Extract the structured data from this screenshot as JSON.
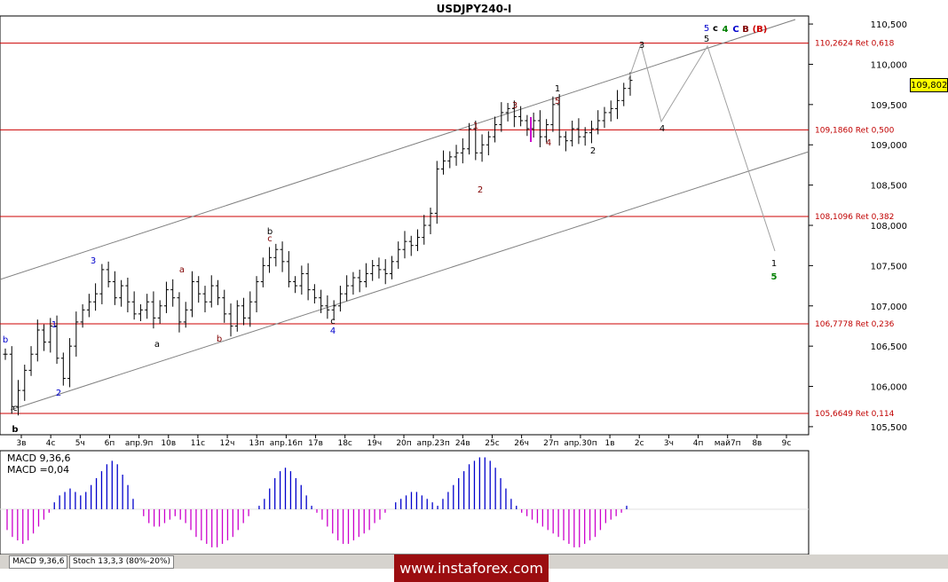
{
  "title": "USDJPY240-I",
  "current_price": "109,802",
  "chart_data": {
    "type": "candlestick",
    "title": "USDJPY240-I",
    "ylim": [
      105.4,
      110.6
    ],
    "y_ticks": [
      "105,500",
      "106,000",
      "106,500",
      "107,000",
      "107,500",
      "108,000",
      "108,500",
      "109,000",
      "109,500",
      "110,000",
      "110,500"
    ],
    "x_ticks": [
      "3в",
      "4с",
      "5ч",
      "6п",
      "апр.9п",
      "10в",
      "11с",
      "12ч",
      "13п",
      "апр.16п",
      "17в",
      "18с",
      "19ч",
      "20п",
      "апр.23п",
      "24в",
      "25с",
      "26ч",
      "27п",
      "апр.30п",
      "1в",
      "2с",
      "3ч",
      "4п",
      "май7п",
      "8в",
      "9с"
    ],
    "fib_levels": [
      {
        "label": "110,2624 Ret 0,618",
        "value": 110.2624
      },
      {
        "label": "109,1860 Ret 0,500",
        "value": 109.186
      },
      {
        "label": "108,1096 Ret 0,382",
        "value": 108.1096
      },
      {
        "label": "106,7778 Ret 0,236",
        "value": 106.7778
      },
      {
        "label": "105,6649 Ret 0,114",
        "value": 105.6649
      }
    ],
    "closes": [
      106.4,
      105.75,
      105.95,
      106.2,
      106.4,
      106.7,
      106.55,
      106.75,
      106.35,
      106.1,
      106.5,
      106.8,
      106.95,
      107.05,
      107.15,
      107.45,
      107.3,
      107.1,
      107.25,
      107.05,
      106.9,
      106.95,
      107.05,
      106.85,
      107.0,
      107.2,
      107.1,
      106.8,
      106.95,
      107.3,
      107.15,
      107.05,
      107.25,
      107.1,
      106.9,
      106.75,
      107.0,
      106.85,
      107.05,
      107.3,
      107.5,
      107.6,
      107.7,
      107.55,
      107.3,
      107.25,
      107.4,
      107.2,
      107.1,
      107.0,
      106.95,
      107.0,
      107.15,
      107.25,
      107.35,
      107.3,
      107.4,
      107.5,
      107.45,
      107.4,
      107.55,
      107.7,
      107.8,
      107.75,
      107.85,
      108.0,
      108.15,
      108.7,
      108.8,
      108.85,
      108.9,
      108.95,
      109.2,
      108.9,
      109.0,
      109.1,
      109.25,
      109.4,
      109.45,
      109.35,
      109.3,
      109.2,
      109.3,
      109.1,
      109.25,
      109.5,
      109.1,
      109.05,
      109.2,
      109.1,
      109.15,
      109.2,
      109.3,
      109.4,
      109.45,
      109.55,
      109.7,
      109.8
    ]
  },
  "wave_labels": [
    {
      "text": "b",
      "color": "#0000cc"
    },
    {
      "text": "c",
      "color": "#000000"
    },
    {
      "text": "b",
      "color": "#000000"
    },
    {
      "text": "1",
      "color": "#0000cc"
    },
    {
      "text": "2",
      "color": "#0000cc"
    },
    {
      "text": "3",
      "color": "#0000cc"
    },
    {
      "text": "a",
      "color": "#000000"
    },
    {
      "text": "a",
      "color": "#800000"
    },
    {
      "text": "b",
      "color": "#800000"
    },
    {
      "text": "b",
      "color": "#000000"
    },
    {
      "text": "c",
      "color": "#800000"
    },
    {
      "text": "c",
      "color": "#000000"
    },
    {
      "text": "4",
      "color": "#0000cc"
    },
    {
      "text": "1",
      "color": "#800000"
    },
    {
      "text": "2",
      "color": "#800000"
    },
    {
      "text": "3",
      "color": "#800000"
    },
    {
      "text": "4",
      "color": "#800000"
    },
    {
      "text": "5",
      "color": "#800000"
    },
    {
      "text": "1",
      "color": "#000000"
    },
    {
      "text": "2",
      "color": "#000000"
    },
    {
      "text": "3",
      "color": "#000000"
    },
    {
      "text": "4",
      "color": "#000000"
    },
    {
      "text": "5",
      "color": "#000000"
    },
    {
      "text": "5",
      "color": "#0000cc"
    },
    {
      "text": "c",
      "color": "#000000"
    },
    {
      "text": "4",
      "color": "#008000"
    },
    {
      "text": "C",
      "color": "#0000cc"
    },
    {
      "text": "B",
      "color": "#800000"
    },
    {
      "text": "(B)",
      "color": "#cc0000"
    },
    {
      "text": "1",
      "color": "#000000"
    },
    {
      "text": "5",
      "color": "#008000"
    }
  ],
  "macd": {
    "label_line1": "MACD 9,36,6",
    "label_line2": "MACD =0,04",
    "values": [
      -6,
      -8,
      -9,
      -10,
      -9,
      -7,
      -5,
      -3,
      -1,
      2,
      4,
      5,
      6,
      5,
      4,
      5,
      7,
      9,
      11,
      13,
      14,
      13,
      10,
      7,
      3,
      0,
      -2,
      -4,
      -5,
      -5,
      -4,
      -3,
      -2,
      -3,
      -4,
      -6,
      -8,
      -9,
      -10,
      -11,
      -11,
      -10,
      -9,
      -8,
      -6,
      -4,
      -2,
      0,
      1,
      3,
      6,
      9,
      11,
      12,
      11,
      9,
      7,
      4,
      1,
      -1,
      -3,
      -5,
      -7,
      -9,
      -10,
      -10,
      -9,
      -8,
      -7,
      -6,
      -4,
      -3,
      -1,
      0,
      2,
      3,
      4,
      5,
      5,
      4,
      3,
      2,
      1,
      3,
      5,
      7,
      9,
      11,
      13,
      14,
      15,
      15,
      14,
      12,
      9,
      6,
      3,
      1,
      -1,
      -2,
      -3,
      -4,
      -5,
      -6,
      -7,
      -8,
      -9,
      -10,
      -11,
      -11,
      -10,
      -9,
      -8,
      -6,
      -4,
      -3,
      -2,
      -1,
      1
    ],
    "pos_color": "#0000cc",
    "neg_color": "#cc00cc"
  },
  "tabs": [
    "MACD 9,36,6",
    "Stoch 13,3,3 (80%-20%)"
  ],
  "watermark": "www.instaforex.com"
}
